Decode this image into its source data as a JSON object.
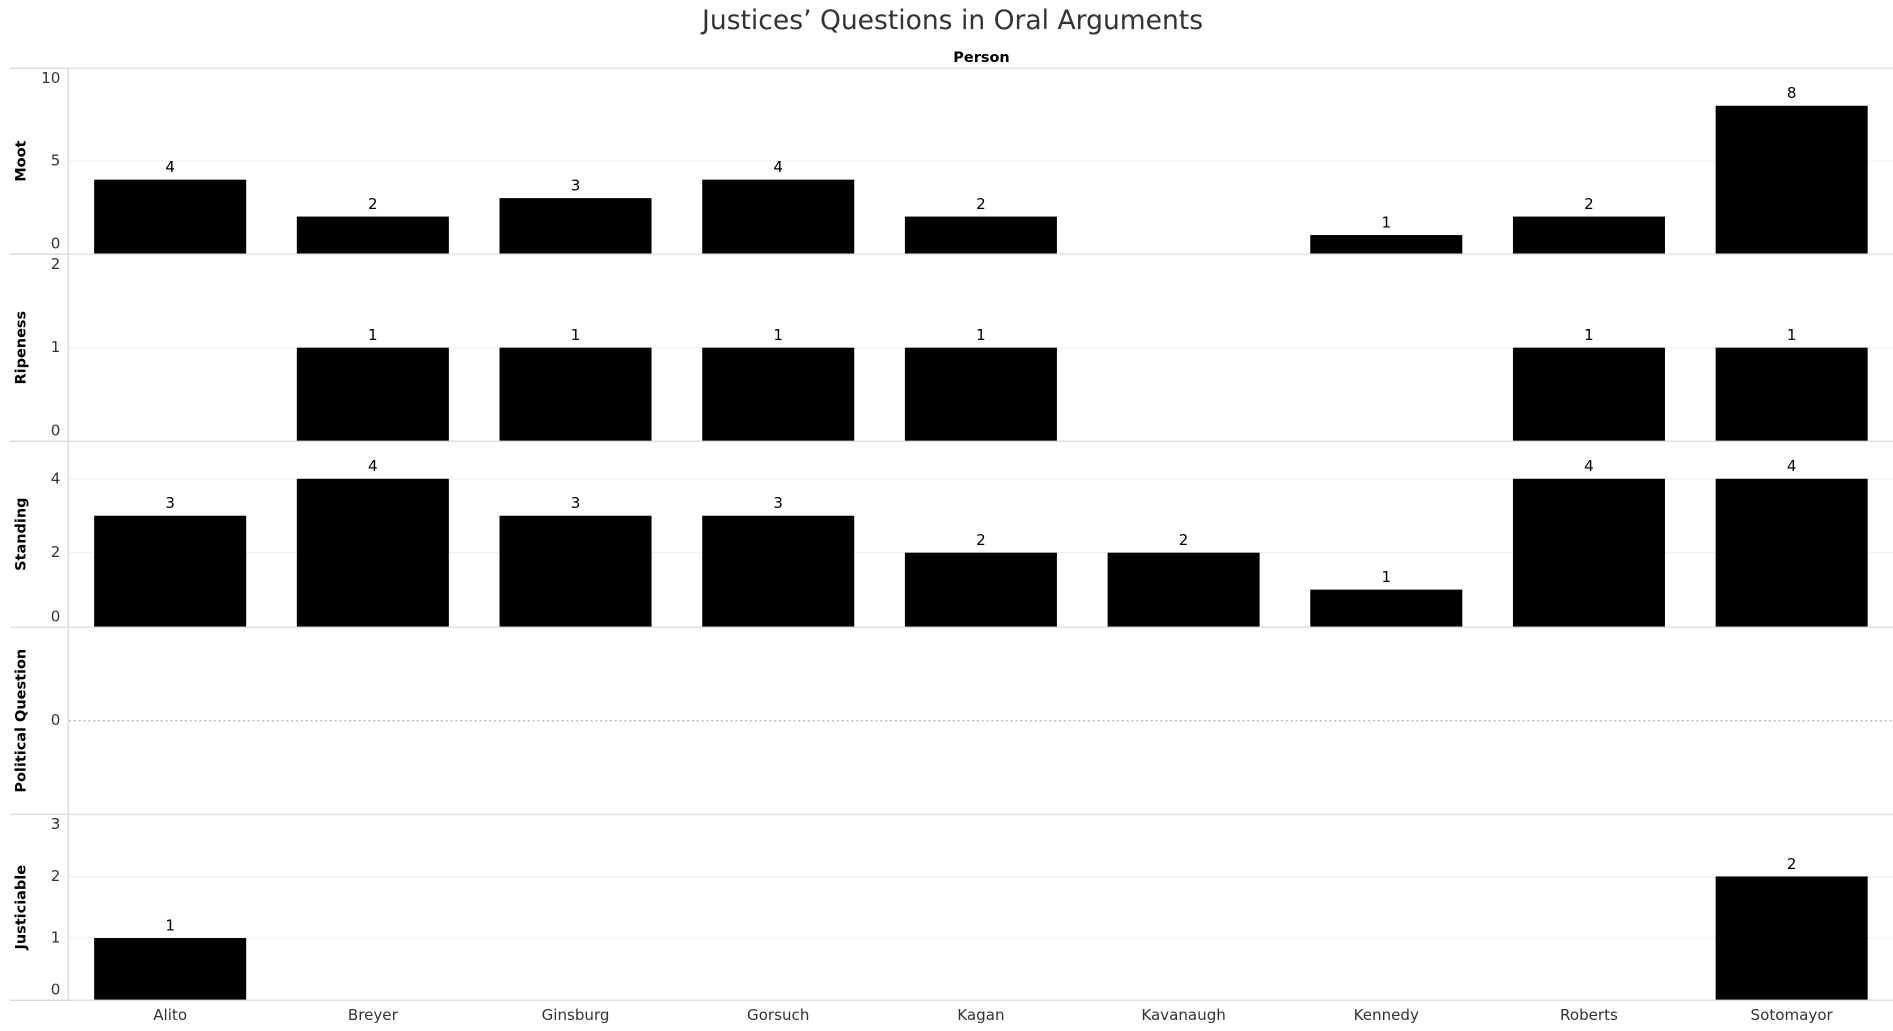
{
  "chart_data": {
    "type": "bar",
    "title": "Justices’ Questions in Oral Arguments",
    "x_label": "Person",
    "categories": [
      "Alito",
      "Breyer",
      "Ginsburg",
      "Gorsuch",
      "Kagan",
      "Kavanaugh",
      "Kennedy",
      "Roberts",
      "Sotomayor"
    ],
    "color": "#000000",
    "grid": true,
    "panels": [
      {
        "name": "Moot",
        "ylim": [
          0,
          10
        ],
        "yticks": [
          0,
          5,
          10
        ],
        "values": [
          4,
          2,
          3,
          4,
          2,
          null,
          1,
          2,
          8
        ]
      },
      {
        "name": "Ripeness",
        "ylim": [
          0,
          2
        ],
        "yticks": [
          0,
          1,
          2
        ],
        "values": [
          null,
          1,
          1,
          1,
          1,
          null,
          null,
          1,
          1
        ]
      },
      {
        "name": "Standing",
        "ylim": [
          0,
          5
        ],
        "yticks": [
          0,
          2,
          4
        ],
        "values": [
          3,
          4,
          3,
          3,
          2,
          2,
          1,
          4,
          4
        ]
      },
      {
        "name": "Political Question",
        "ylim": [
          -1,
          1
        ],
        "yticks": [
          0
        ],
        "values": [
          null,
          null,
          null,
          null,
          null,
          null,
          null,
          null,
          null
        ]
      },
      {
        "name": "Justiciable",
        "ylim": [
          0,
          3
        ],
        "yticks": [
          0,
          1,
          2,
          3
        ],
        "values": [
          1,
          null,
          null,
          null,
          null,
          null,
          null,
          null,
          2
        ]
      }
    ]
  }
}
